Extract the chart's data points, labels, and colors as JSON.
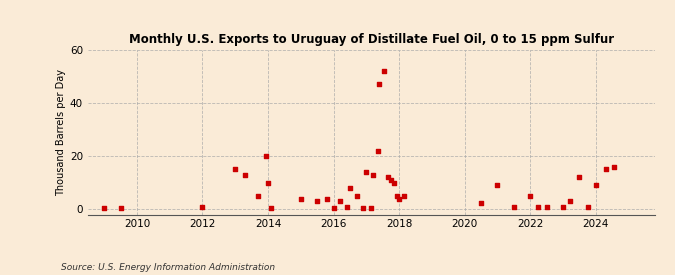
{
  "title": "Monthly U.S. Exports to Uruguay of Distillate Fuel Oil, 0 to 15 ppm Sulfur",
  "ylabel": "Thousand Barrels per Day",
  "source": "Source: U.S. Energy Information Administration",
  "background_color": "#faebd7",
  "marker_color": "#cc0000",
  "marker_size": 10,
  "ylim": [
    -2,
    60
  ],
  "yticks": [
    0,
    20,
    40,
    60
  ],
  "xlim": [
    2008.5,
    2025.8
  ],
  "xticks": [
    2010,
    2012,
    2014,
    2016,
    2018,
    2020,
    2022,
    2024
  ],
  "points": [
    [
      2009.0,
      0.5
    ],
    [
      2009.5,
      0.5
    ],
    [
      2012.0,
      1.0
    ],
    [
      2013.0,
      15.0
    ],
    [
      2013.3,
      13.0
    ],
    [
      2013.7,
      5.0
    ],
    [
      2014.0,
      10.0
    ],
    [
      2013.95,
      20.0
    ],
    [
      2014.1,
      0.5
    ],
    [
      2015.0,
      4.0
    ],
    [
      2015.5,
      3.0
    ],
    [
      2015.8,
      4.0
    ],
    [
      2016.0,
      0.5
    ],
    [
      2016.2,
      3.0
    ],
    [
      2016.4,
      1.0
    ],
    [
      2016.5,
      8.0
    ],
    [
      2016.7,
      5.0
    ],
    [
      2016.9,
      0.5
    ],
    [
      2017.0,
      14.0
    ],
    [
      2017.15,
      0.5
    ],
    [
      2017.2,
      13.0
    ],
    [
      2017.35,
      22.0
    ],
    [
      2017.4,
      47.0
    ],
    [
      2017.55,
      52.0
    ],
    [
      2017.65,
      12.0
    ],
    [
      2017.75,
      11.0
    ],
    [
      2017.85,
      10.0
    ],
    [
      2017.95,
      5.0
    ],
    [
      2018.0,
      4.0
    ],
    [
      2018.15,
      5.0
    ],
    [
      2020.5,
      2.5
    ],
    [
      2021.0,
      9.0
    ],
    [
      2021.5,
      1.0
    ],
    [
      2022.0,
      5.0
    ],
    [
      2022.25,
      1.0
    ],
    [
      2022.5,
      1.0
    ],
    [
      2023.0,
      1.0
    ],
    [
      2023.2,
      3.0
    ],
    [
      2023.5,
      12.0
    ],
    [
      2023.75,
      1.0
    ],
    [
      2024.0,
      9.0
    ],
    [
      2024.3,
      15.0
    ],
    [
      2024.55,
      16.0
    ]
  ]
}
